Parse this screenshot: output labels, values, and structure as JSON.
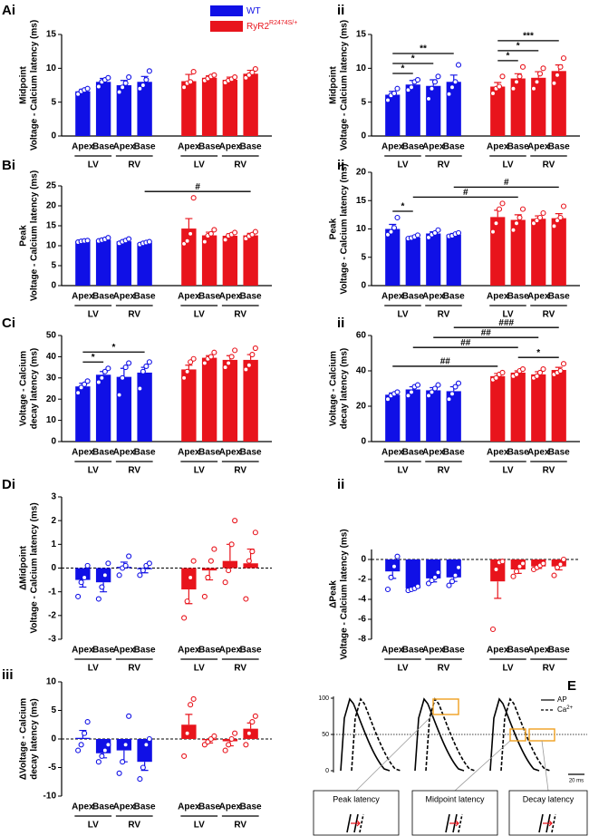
{
  "chart_data": [
    {
      "type": "bar",
      "panel": "Ai",
      "ylabel": [
        "Midpoint",
        "Voltage - Calcium latency (ms)"
      ],
      "ylim": [
        0,
        15
      ],
      "yticks": [
        0,
        5,
        10,
        15
      ],
      "categories": [
        "Apex",
        "Base",
        "Apex",
        "Base"
      ],
      "groups": [
        "LV",
        "RV"
      ],
      "legend": true,
      "series": [
        {
          "name": "WT",
          "color": "#1010e6",
          "values": [
            6.6,
            8.0,
            7.5,
            8.0
          ],
          "errors": [
            0.3,
            0.5,
            0.7,
            0.8
          ],
          "points": [
            [
              6.2,
              6.6,
              6.8,
              7.0
            ],
            [
              7.3,
              8.0,
              8.3,
              8.6
            ],
            [
              6.5,
              7.2,
              7.8,
              8.7
            ],
            [
              7.0,
              7.5,
              8.3,
              9.6
            ]
          ]
        },
        {
          "name": "RyR2",
          "name_sup": "R2474S/+",
          "color": "#e8141c",
          "values": [
            8.1,
            8.6,
            8.3,
            9.2
          ],
          "errors": [
            1.0,
            0.3,
            0.4,
            0.5
          ],
          "points": [
            [
              7.2,
              7.8,
              8.0,
              9.5
            ],
            [
              8.2,
              8.5,
              8.8,
              9.0
            ],
            [
              7.9,
              8.2,
              8.4,
              8.7
            ],
            [
              8.6,
              9.0,
              9.4,
              9.9
            ]
          ]
        }
      ],
      "annotations": []
    },
    {
      "type": "bar",
      "panel": "ii",
      "ylabel": [
        "Midpoint",
        "Voltage - Calcium latency (ms)"
      ],
      "ylim": [
        0,
        15
      ],
      "yticks": [
        0,
        5,
        10,
        15
      ],
      "categories": [
        "Apex",
        "Base",
        "Apex",
        "Base"
      ],
      "groups": [
        "LV",
        "RV"
      ],
      "legend": false,
      "series": [
        {
          "name": "WT",
          "color": "#1010e6",
          "values": [
            6.1,
            7.6,
            7.4,
            8.0
          ],
          "errors": [
            0.5,
            0.6,
            0.9,
            1.0
          ],
          "points": [
            [
              5.3,
              6.0,
              6.3,
              7.0
            ],
            [
              6.8,
              7.2,
              8.0,
              8.3
            ],
            [
              5.5,
              7.0,
              8.0,
              8.8
            ],
            [
              6.2,
              7.2,
              8.0,
              10.5
            ]
          ]
        },
        {
          "name": "RyR2",
          "name_sup": "R2474S/+",
          "color": "#e8141c",
          "values": [
            7.3,
            8.5,
            8.6,
            9.6
          ],
          "errors": [
            0.6,
            0.7,
            0.9,
            0.9
          ],
          "points": [
            [
              6.3,
              7.0,
              7.3,
              8.8
            ],
            [
              7.0,
              8.0,
              8.8,
              10.2
            ],
            [
              7.0,
              8.0,
              9.2,
              10.0
            ],
            [
              7.8,
              9.0,
              10.2,
              11.5
            ]
          ]
        }
      ],
      "annotations": [
        {
          "label": "*",
          "from": 0,
          "to": 1
        },
        {
          "label": "*",
          "from": 0,
          "to": 2
        },
        {
          "label": "**",
          "from": 0,
          "to": 3
        },
        {
          "label": "*",
          "from": 4,
          "to": 5
        },
        {
          "label": "*",
          "from": 4,
          "to": 6
        },
        {
          "label": "***",
          "from": 4,
          "to": 7
        }
      ]
    },
    {
      "type": "bar",
      "panel": "Bi",
      "ylabel": [
        "Peak",
        "Voltage - Calcium latency (ms)"
      ],
      "ylim": [
        0,
        25
      ],
      "yticks": [
        0,
        5,
        10,
        15,
        20,
        25
      ],
      "categories": [
        "Apex",
        "Base",
        "Apex",
        "Base"
      ],
      "groups": [
        "LV",
        "RV"
      ],
      "legend": false,
      "series": [
        {
          "name": "WT",
          "color": "#1010e6",
          "values": [
            11.1,
            11.5,
            11.1,
            10.7
          ],
          "errors": [
            0.2,
            0.3,
            0.3,
            0.3
          ],
          "points": [
            [
              10.9,
              11.1,
              11.2,
              11.3
            ],
            [
              11.2,
              11.4,
              11.6,
              12.0
            ],
            [
              10.6,
              11.0,
              11.3,
              11.7
            ],
            [
              10.3,
              10.6,
              10.8,
              11.0
            ]
          ]
        },
        {
          "name": "RyR2",
          "name_sup": "R2474S/+",
          "color": "#e8141c",
          "values": [
            14.3,
            12.6,
            12.5,
            12.6
          ],
          "errors": [
            2.5,
            0.8,
            0.5,
            0.5
          ],
          "points": [
            [
              10.5,
              11.2,
              13.0,
              22.0
            ],
            [
              11.0,
              12.5,
              13.0,
              14.0
            ],
            [
              11.5,
              12.5,
              12.8,
              13.3
            ],
            [
              11.8,
              12.4,
              12.8,
              13.5
            ]
          ]
        }
      ],
      "annotations": [
        {
          "label": "#",
          "from": 3,
          "to": 7
        }
      ]
    },
    {
      "type": "bar",
      "panel": "ii",
      "ylabel": [
        "Peak",
        "Voltage - Calcium latency (ms)"
      ],
      "ylim": [
        0,
        20
      ],
      "yticks": [
        0,
        5,
        10,
        15,
        20
      ],
      "categories": [
        "Apex",
        "Base",
        "Apex",
        "Base"
      ],
      "groups": [
        "LV",
        "RV"
      ],
      "legend": false,
      "series": [
        {
          "name": "WT",
          "color": "#1010e6",
          "values": [
            10.0,
            8.5,
            9.2,
            9.0
          ],
          "errors": [
            0.8,
            0.2,
            0.3,
            0.2
          ],
          "points": [
            [
              9.0,
              9.5,
              10.2,
              12.0
            ],
            [
              8.3,
              8.4,
              8.6,
              8.9
            ],
            [
              8.5,
              9.0,
              9.3,
              9.8
            ],
            [
              8.7,
              8.8,
              9.1,
              9.3
            ]
          ]
        },
        {
          "name": "RyR2",
          "name_sup": "R2474S/+",
          "color": "#e8141c",
          "values": [
            12.1,
            11.6,
            11.8,
            11.9
          ],
          "errors": [
            1.2,
            0.9,
            0.5,
            0.8
          ],
          "points": [
            [
              9.5,
              11.0,
              13.5,
              14.5
            ],
            [
              9.8,
              11.0,
              12.0,
              13.5
            ],
            [
              11.0,
              11.5,
              12.0,
              12.8
            ],
            [
              10.5,
              11.5,
              12.0,
              14.0
            ]
          ]
        }
      ],
      "annotations": [
        {
          "label": "*",
          "from": 0,
          "to": 1
        },
        {
          "label": "#",
          "from": 1,
          "to": 5
        },
        {
          "label": "#",
          "from": 3,
          "to": 7
        }
      ]
    },
    {
      "type": "bar",
      "panel": "Ci",
      "ylabel": [
        "Voltage - Calcium",
        "decay latency (ms)"
      ],
      "ylim": [
        0,
        50
      ],
      "yticks": [
        0,
        10,
        20,
        30,
        40,
        50
      ],
      "categories": [
        "Apex",
        "Base",
        "Apex",
        "Base"
      ],
      "groups": [
        "LV",
        "RV"
      ],
      "legend": false,
      "series": [
        {
          "name": "WT",
          "color": "#1010e6",
          "values": [
            26,
            31.5,
            30.5,
            32.5
          ],
          "errors": [
            1.5,
            1.5,
            4,
            2.5
          ],
          "points": [
            [
              23,
              25.5,
              27,
              28.5
            ],
            [
              28,
              30,
              33,
              34.5
            ],
            [
              22,
              30,
              35,
              37
            ],
            [
              25,
              33,
              35.5,
              37.5
            ]
          ]
        },
        {
          "name": "RyR2",
          "name_sup": "R2474S/+",
          "color": "#e8141c",
          "values": [
            34,
            39.5,
            38.5,
            38.5
          ],
          "errors": [
            2,
            1,
            2,
            2.5
          ],
          "points": [
            [
              30,
              33,
              37.5,
              39
            ],
            [
              37,
              39,
              40,
              42
            ],
            [
              35,
              37,
              40,
              43
            ],
            [
              34,
              36,
              41,
              44
            ]
          ]
        }
      ],
      "annotations": [
        {
          "label": "*",
          "from": 0,
          "to": 1
        },
        {
          "label": "*",
          "from": 0,
          "to": 3
        }
      ]
    },
    {
      "type": "bar",
      "panel": "ii",
      "ylabel": [
        "Voltage - Calcium",
        "decay latency (ms)"
      ],
      "ylim": [
        0,
        60
      ],
      "yticks": [
        0,
        20,
        40,
        60
      ],
      "categories": [
        "Apex",
        "Base",
        "Apex",
        "Base"
      ],
      "groups": [
        "LV",
        "RV"
      ],
      "legend": false,
      "series": [
        {
          "name": "WT",
          "color": "#1010e6",
          "values": [
            26.5,
            29.5,
            29,
            28.5
          ],
          "errors": [
            1,
            1.5,
            1.5,
            2.5
          ],
          "points": [
            [
              24,
              26,
              27,
              28
            ],
            [
              26,
              28,
              31,
              32
            ],
            [
              26,
              28,
              30,
              32
            ],
            [
              24,
              27,
              31,
              33
            ]
          ]
        },
        {
          "name": "RyR2",
          "name_sup": "R2474S/+",
          "color": "#e8141c",
          "values": [
            37,
            39,
            38,
            40.5
          ],
          "errors": [
            1.5,
            1,
            1.5,
            1.5
          ],
          "points": [
            [
              35,
              36,
              38,
              39
            ],
            [
              37,
              38,
              40,
              41
            ],
            [
              36,
              37,
              39,
              41
            ],
            [
              38,
              39,
              40,
              44
            ]
          ]
        }
      ],
      "annotations": [
        {
          "label": "##",
          "from": 0,
          "to": 4
        },
        {
          "label": "*",
          "from": 5,
          "to": 7
        },
        {
          "label": "##",
          "from": 1,
          "to": 5
        },
        {
          "label": "##",
          "from": 2,
          "to": 6
        },
        {
          "label": "###",
          "from": 3,
          "to": 7
        }
      ]
    },
    {
      "type": "bar",
      "panel": "Di",
      "ylabel": [
        "ΔMidpoint",
        "Voltage - Calcium latency (ms)"
      ],
      "ylim": [
        -3,
        3
      ],
      "yticks": [
        -3,
        -2,
        -1,
        0,
        1,
        2,
        3
      ],
      "categories": [
        "Apex",
        "Base",
        "Apex",
        "Base"
      ],
      "groups": [
        "LV",
        "RV"
      ],
      "legend": false,
      "series": [
        {
          "name": "WT",
          "color": "#1010e6",
          "values": [
            -0.5,
            -0.6,
            0.05,
            -0.05
          ],
          "errors": [
            0.3,
            0.4,
            0.2,
            0.15
          ],
          "points": [
            [
              -1.2,
              -0.6,
              -0.4,
              0.1
            ],
            [
              -1.3,
              -0.8,
              -0.3,
              0.2
            ],
            [
              -0.3,
              0,
              0.1,
              0.5
            ],
            [
              -0.3,
              -0.1,
              0.1,
              0.2
            ]
          ]
        },
        {
          "name": "RyR2",
          "name_sup": "R2474S/+",
          "color": "#e8141c",
          "values": [
            -0.9,
            -0.1,
            0.3,
            0.2
          ],
          "errors": [
            0.6,
            0.4,
            0.7,
            0.6
          ],
          "points": [
            [
              -2.1,
              -1.4,
              -0.4,
              0.3
            ],
            [
              -1.2,
              -0.4,
              0.3,
              0.8
            ],
            [
              -0.6,
              -0.1,
              1,
              2
            ],
            [
              -1.3,
              0.3,
              0.7,
              1.5
            ]
          ]
        }
      ],
      "annotations": []
    },
    {
      "type": "bar",
      "panel": "ii",
      "ylabel": [
        "ΔPeak",
        "Voltage - Calcium latency (ms)"
      ],
      "ylim": [
        -8,
        1
      ],
      "yticks": [
        -8,
        -6,
        -4,
        -2,
        0
      ],
      "categories": [
        "Apex",
        "Base",
        "Apex",
        "Base"
      ],
      "groups": [
        "LV",
        "RV"
      ],
      "legend": false,
      "series": [
        {
          "name": "WT",
          "color": "#1010e6",
          "values": [
            -1.2,
            -2.9,
            -1.9,
            -1.8
          ],
          "errors": [
            0.7,
            0.15,
            0.35,
            0.4
          ],
          "points": [
            [
              -3,
              -1.8,
              -0.7,
              0.3
            ],
            [
              -3.1,
              -3,
              -2.9,
              -2.7
            ],
            [
              -2.4,
              -2.1,
              -1.8,
              -1.3
            ],
            [
              -2.6,
              -2.2,
              -1.6,
              -0.8
            ]
          ]
        },
        {
          "name": "RyR2",
          "name_sup": "R2474S/+",
          "color": "#e8141c",
          "values": [
            -2.2,
            -1.0,
            -0.7,
            -0.7
          ],
          "errors": [
            1.7,
            0.4,
            0.2,
            0.35
          ],
          "points": [
            [
              -7,
              -1,
              -0.3,
              -0.2
            ],
            [
              -1.7,
              -1.2,
              -0.7,
              -0.4
            ],
            [
              -1.0,
              -0.8,
              -0.6,
              -0.4
            ],
            [
              -1.6,
              -0.8,
              -0.5,
              0
            ]
          ]
        }
      ],
      "annotations": []
    },
    {
      "type": "bar",
      "panel": "iii",
      "ylabel": [
        "ΔVoltage - Calcium",
        "decay latency (ms)"
      ],
      "ylim": [
        -10,
        10
      ],
      "yticks": [
        -10,
        -5,
        0,
        5,
        10
      ],
      "categories": [
        "Apex",
        "Base",
        "Apex",
        "Base"
      ],
      "groups": [
        "LV",
        "RV"
      ],
      "legend": false,
      "series": [
        {
          "name": "WT",
          "color": "#1010e6",
          "values": [
            0.2,
            -2.5,
            -2.0,
            -4.0
          ],
          "errors": [
            1.3,
            0.8,
            2.0,
            1.5
          ],
          "points": [
            [
              -2,
              -1,
              1,
              3
            ],
            [
              -4,
              -3,
              -2,
              -1
            ],
            [
              -6,
              -4,
              -1,
              4
            ],
            [
              -7,
              -5,
              -1,
              0
            ]
          ]
        },
        {
          "name": "RyR2",
          "name_sup": "R2474S/+",
          "color": "#e8141c",
          "values": [
            2.5,
            -0.2,
            -0.4,
            1.8
          ],
          "errors": [
            1.8,
            0.5,
            0.8,
            1.0
          ],
          "points": [
            [
              -3,
              1,
              6,
              7
            ],
            [
              -1,
              -0.5,
              0,
              0.5
            ],
            [
              -2,
              -1,
              0,
              1
            ],
            [
              -1,
              1,
              3,
              4
            ]
          ]
        }
      ],
      "annotations": []
    }
  ],
  "diagram": {
    "panel": "E",
    "yticks": [
      0,
      50,
      100
    ],
    "legend": [
      {
        "name": "AP"
      },
      {
        "name": "Ca",
        "sup": "2+"
      }
    ],
    "scale_bar": "20 ms",
    "insets": [
      "Peak latency",
      "Midpoint latency",
      "Decay latency"
    ]
  }
}
